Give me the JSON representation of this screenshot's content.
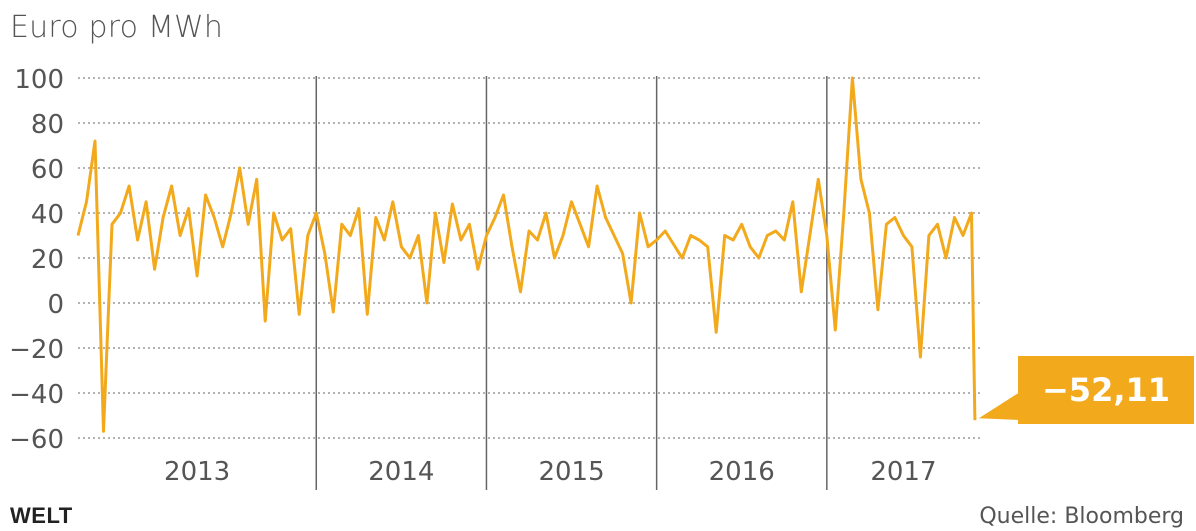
{
  "header": {
    "unit_label": "Euro pro MWh"
  },
  "footer": {
    "brand": "WELT",
    "source": "Quelle: Bloomberg"
  },
  "callout": {
    "label": "−52,11"
  },
  "colors": {
    "line": "#f2a91c",
    "axis": "#555555",
    "grid": "#9a9a9a",
    "callout_bg": "#f2a91c"
  },
  "chart_data": {
    "type": "line",
    "title": "",
    "xlabel": "",
    "ylabel": "Euro pro MWh",
    "ylim": [
      -60,
      100
    ],
    "yticks": [
      100,
      80,
      60,
      40,
      20,
      0,
      -20,
      -40,
      -60
    ],
    "ytick_labels": [
      "100",
      "80",
      "60",
      "40",
      "20",
      "0",
      "−20",
      "−40",
      "−60"
    ],
    "categories": [
      "2013",
      "2014",
      "2015",
      "2016",
      "2017"
    ],
    "xlim": [
      2012.6,
      2017.9
    ],
    "grid": "horizontal dotted",
    "series": [
      {
        "name": "",
        "color": "#f2a91c",
        "x": [
          2012.6,
          2012.65,
          2012.7,
          2012.75,
          2012.8,
          2012.85,
          2012.9,
          2012.95,
          2013.0,
          2013.05,
          2013.1,
          2013.15,
          2013.2,
          2013.25,
          2013.3,
          2013.35,
          2013.4,
          2013.45,
          2013.5,
          2013.55,
          2013.6,
          2013.65,
          2013.7,
          2013.75,
          2013.8,
          2013.85,
          2013.9,
          2013.95,
          2014.0,
          2014.05,
          2014.1,
          2014.15,
          2014.2,
          2014.25,
          2014.3,
          2014.35,
          2014.4,
          2014.45,
          2014.5,
          2014.55,
          2014.6,
          2014.65,
          2014.7,
          2014.75,
          2014.8,
          2014.85,
          2014.9,
          2014.95,
          2015.0,
          2015.05,
          2015.1,
          2015.15,
          2015.2,
          2015.25,
          2015.3,
          2015.35,
          2015.4,
          2015.45,
          2015.5,
          2015.55,
          2015.6,
          2015.65,
          2015.7,
          2015.75,
          2015.8,
          2015.85,
          2015.9,
          2015.95,
          2016.0,
          2016.05,
          2016.1,
          2016.15,
          2016.2,
          2016.25,
          2016.3,
          2016.35,
          2016.4,
          2016.45,
          2016.5,
          2016.55,
          2016.6,
          2016.65,
          2016.7,
          2016.75,
          2016.8,
          2016.85,
          2016.9,
          2016.95,
          2017.0,
          2017.05,
          2017.1,
          2017.15,
          2017.2,
          2017.25,
          2017.3,
          2017.35,
          2017.4,
          2017.45,
          2017.5,
          2017.55,
          2017.6,
          2017.65,
          2017.7,
          2017.75,
          2017.8,
          2017.85,
          2017.87
        ],
        "values": [
          30,
          45,
          72,
          -57,
          35,
          40,
          52,
          28,
          45,
          15,
          38,
          52,
          30,
          42,
          12,
          48,
          38,
          25,
          40,
          60,
          35,
          55,
          -8,
          40,
          28,
          33,
          -5,
          30,
          40,
          22,
          -4,
          35,
          30,
          42,
          -5,
          38,
          28,
          45,
          25,
          20,
          30,
          0,
          40,
          18,
          44,
          28,
          35,
          15,
          30,
          38,
          48,
          25,
          5,
          32,
          28,
          40,
          20,
          30,
          45,
          35,
          25,
          52,
          38,
          30,
          22,
          0,
          40,
          25,
          28,
          32,
          26,
          20,
          30,
          28,
          25,
          -13,
          30,
          28,
          35,
          25,
          20,
          30,
          32,
          28,
          45,
          5,
          30,
          55,
          30,
          -12,
          40,
          100,
          55,
          40,
          -3,
          35,
          38,
          30,
          25,
          -24,
          30,
          35,
          20,
          38,
          30,
          40,
          -52.11
        ]
      }
    ],
    "annotations": [
      "−52,11"
    ]
  }
}
